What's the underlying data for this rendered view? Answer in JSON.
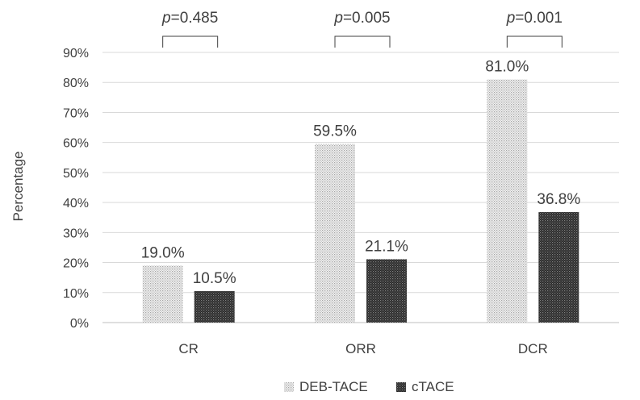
{
  "chart_data": {
    "type": "bar",
    "title": "",
    "xlabel": "",
    "ylabel": "Percentage",
    "ylim": [
      0,
      90
    ],
    "y_tick_step": 10,
    "y_tick_format": "{v}%",
    "grid": true,
    "legend_position": "bottom",
    "categories": [
      "CR",
      "ORR",
      "DCR"
    ],
    "series": [
      {
        "name": "DEB-TACE",
        "values": [
          19.0,
          59.5,
          81.0
        ],
        "labels": [
          "19.0%",
          "59.5%",
          "81.0%"
        ],
        "pattern": "light-dots",
        "color": "#d9d9d9"
      },
      {
        "name": "cTACE",
        "values": [
          10.5,
          21.1,
          36.8
        ],
        "labels": [
          "10.5%",
          "21.1%",
          "36.8%"
        ],
        "pattern": "dark-dots",
        "color": "#3a3a3a"
      }
    ],
    "annotations": [
      {
        "category": "CR",
        "p_symbol": "p",
        "p_value": "=0.485"
      },
      {
        "category": "ORR",
        "p_symbol": "p",
        "p_value": "=0.005"
      },
      {
        "category": "DCR",
        "p_symbol": "p",
        "p_value": "=0.001"
      }
    ]
  }
}
